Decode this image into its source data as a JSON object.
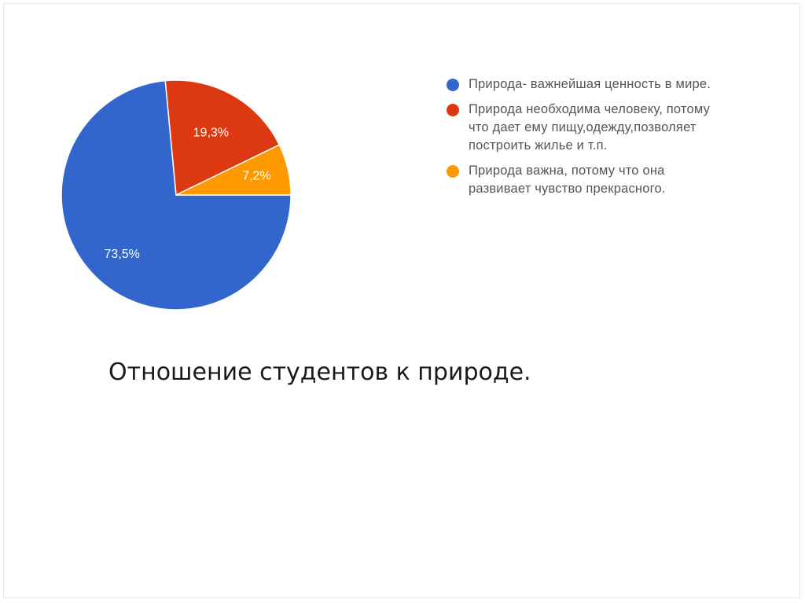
{
  "chart_data": {
    "type": "pie",
    "slices": [
      {
        "label": "Природа- важнейшая ценность в мире.",
        "value": 73.5,
        "display": "73,5%",
        "color": "#3366cc"
      },
      {
        "label": "Природа необходима человеку, потому что дает ему пищу,одежду,позволяет построить жилье и т.п.",
        "value": 19.3,
        "display": "19,3%",
        "color": "#dc3912"
      },
      {
        "label": "Природа важна, потому что она развивает чувство прекрасного.",
        "value": 7.2,
        "display": "7,2%",
        "color": "#ff9900"
      }
    ],
    "legend_position": "right"
  },
  "caption": "Отношение студентов к природе."
}
